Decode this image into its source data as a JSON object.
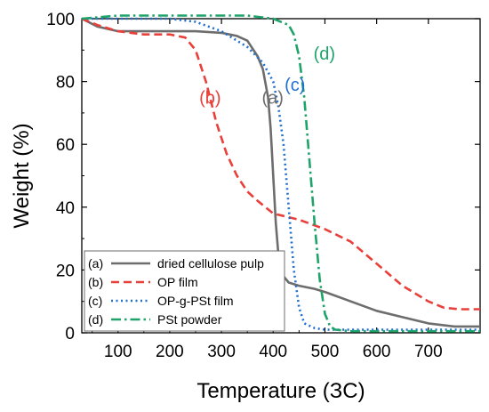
{
  "chart_data": {
    "type": "line",
    "title": "",
    "xlabel": "Temperature (ЗC)",
    "ylabel": "Weight (%)",
    "xlim": [
      30,
      800
    ],
    "ylim": [
      0,
      100
    ],
    "x_ticks": [
      100,
      200,
      300,
      400,
      500,
      600,
      700
    ],
    "y_ticks": [
      0,
      20,
      40,
      60,
      80,
      100
    ],
    "grid": false,
    "legend_position": "bottom-left",
    "series": [
      {
        "id": "a",
        "legend_tag": "(a)",
        "name": "dried cellulose pulp",
        "annotation": "(a)",
        "color": "#6d6d6d",
        "dash": "solid",
        "x": [
          30,
          60,
          100,
          150,
          200,
          250,
          300,
          330,
          350,
          370,
          380,
          390,
          395,
          400,
          405,
          410,
          415,
          420,
          430,
          450,
          480,
          500,
          550,
          600,
          650,
          700,
          750,
          800
        ],
        "y": [
          100,
          97.5,
          96,
          96,
          96,
          96,
          95.5,
          94.5,
          93,
          88,
          84,
          75,
          65,
          50,
          35,
          25,
          20,
          18,
          16,
          15,
          14,
          13,
          10,
          7,
          5,
          3,
          2,
          2
        ]
      },
      {
        "id": "b",
        "legend_tag": "(b)",
        "name": "OP film",
        "annotation": "(b)",
        "color": "#e8403a",
        "dash": "dashed",
        "x": [
          30,
          60,
          100,
          150,
          200,
          230,
          250,
          270,
          290,
          310,
          330,
          350,
          370,
          400,
          450,
          500,
          550,
          600,
          650,
          700,
          730,
          760,
          800
        ],
        "y": [
          100,
          98,
          96,
          95,
          95,
          94,
          90,
          80,
          67,
          57,
          50,
          45,
          42,
          38,
          36,
          33,
          29,
          22,
          15,
          10,
          8,
          7.5,
          7.5
        ]
      },
      {
        "id": "c",
        "legend_tag": "(c)",
        "name": "OP-g-PSt film",
        "annotation": "(c)",
        "color": "#1f6fd1",
        "dash": "dotted",
        "x": [
          30,
          100,
          200,
          250,
          300,
          350,
          380,
          400,
          410,
          420,
          430,
          440,
          450,
          460,
          480,
          500,
          600,
          700,
          800
        ],
        "y": [
          100,
          100,
          100,
          99,
          96,
          91,
          86,
          80,
          72,
          60,
          40,
          20,
          8,
          3,
          1.5,
          1,
          1,
          1,
          1
        ]
      },
      {
        "id": "d",
        "legend_tag": "(d)",
        "name": "PSt powder",
        "annotation": "(d)",
        "color": "#1ea36a",
        "dash": "dashdot",
        "x": [
          30,
          100,
          200,
          300,
          350,
          400,
          430,
          440,
          450,
          460,
          470,
          480,
          490,
          500,
          510,
          520,
          550,
          600,
          700,
          800
        ],
        "y": [
          100,
          101,
          101,
          101,
          101,
          100,
          98,
          95,
          88,
          75,
          55,
          35,
          17,
          6,
          2,
          1,
          0.5,
          0.5,
          0.5,
          0.5
        ]
      }
    ],
    "annotations": [
      {
        "text": "(a)",
        "series": "a",
        "x": 378,
        "y": 73
      },
      {
        "text": "(b)",
        "series": "b",
        "x": 257,
        "y": 73
      },
      {
        "text": "(c)",
        "series": "c",
        "x": 422,
        "y": 77
      },
      {
        "text": "(d)",
        "series": "d",
        "x": 478,
        "y": 87
      }
    ]
  }
}
